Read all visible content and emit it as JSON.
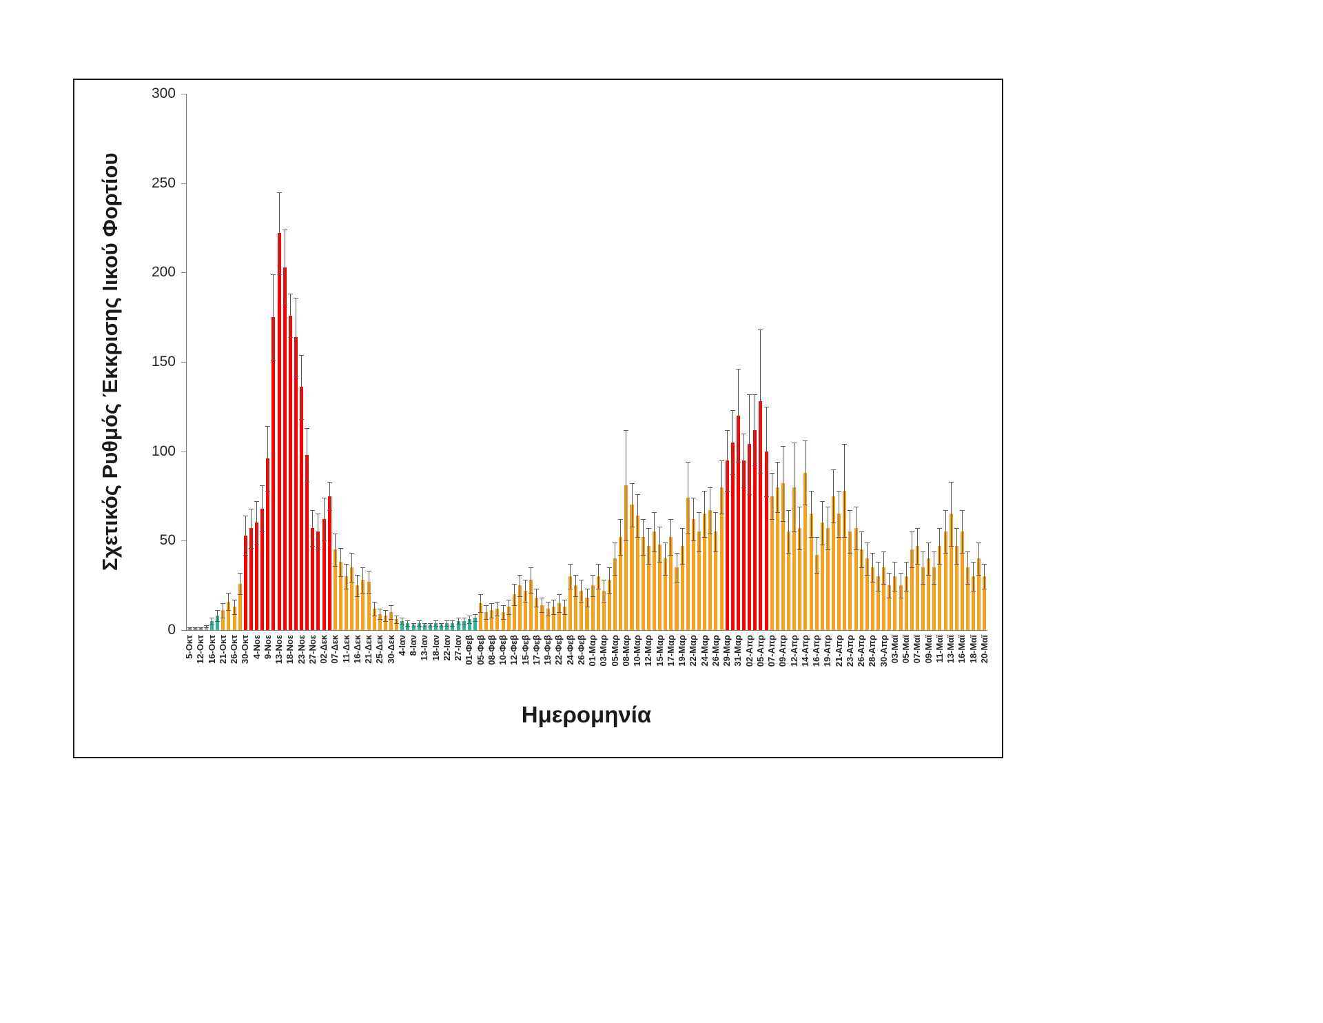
{
  "chart_data": {
    "type": "bar",
    "title": "",
    "xlabel": "Ημερομηνία",
    "ylabel": "Σχετικός Ρυθμός Έκκρισης Ιικού Φορτίου",
    "ylim": [
      0,
      300
    ],
    "y_ticks": [
      0,
      50,
      100,
      150,
      200,
      250,
      300
    ],
    "grid": false,
    "legend": "none",
    "error_bars": true,
    "palette": {
      "gray": "#a6a6a6",
      "teal": "#2fb39b",
      "orange": "#f6a21e",
      "red": "#fe0000",
      "error": "#595959"
    },
    "bars": [
      {
        "label": "5-Οκτ",
        "value": 1,
        "err": 0.4,
        "color": "gray"
      },
      {
        "label": "",
        "value": 1,
        "err": 0.4,
        "color": "gray"
      },
      {
        "label": "12-Οκτ",
        "value": 1,
        "err": 0.4,
        "color": "gray"
      },
      {
        "label": "",
        "value": 2,
        "err": 0.6,
        "color": "gray"
      },
      {
        "label": "16-Οκτ",
        "value": 5,
        "err": 2,
        "color": "teal"
      },
      {
        "label": "",
        "value": 8,
        "err": 3,
        "color": "teal"
      },
      {
        "label": "21-Οκτ",
        "value": 11,
        "err": 4,
        "color": "orange"
      },
      {
        "label": "",
        "value": 16,
        "err": 5,
        "color": "orange"
      },
      {
        "label": "26-Οκτ",
        "value": 13,
        "err": 4,
        "color": "orange"
      },
      {
        "label": "",
        "value": 26,
        "err": 6,
        "color": "orange"
      },
      {
        "label": "30-Οκτ",
        "value": 53,
        "err": 11,
        "color": "red"
      },
      {
        "label": "",
        "value": 57,
        "err": 11,
        "color": "red"
      },
      {
        "label": "4-Νοε",
        "value": 60,
        "err": 12,
        "color": "red"
      },
      {
        "label": "",
        "value": 68,
        "err": 13,
        "color": "red"
      },
      {
        "label": "9-Νοε",
        "value": 96,
        "err": 18,
        "color": "red"
      },
      {
        "label": "",
        "value": 175,
        "err": 24,
        "color": "red"
      },
      {
        "label": "13-Νοε",
        "value": 222,
        "err": 23,
        "color": "red"
      },
      {
        "label": "",
        "value": 203,
        "err": 21,
        "color": "red"
      },
      {
        "label": "18-Νοε",
        "value": 176,
        "err": 12,
        "color": "red"
      },
      {
        "label": "",
        "value": 164,
        "err": 22,
        "color": "red"
      },
      {
        "label": "23-Νοε",
        "value": 136,
        "err": 18,
        "color": "red"
      },
      {
        "label": "",
        "value": 98,
        "err": 15,
        "color": "red"
      },
      {
        "label": "27-Νοε",
        "value": 57,
        "err": 10,
        "color": "red"
      },
      {
        "label": "",
        "value": 55,
        "err": 10,
        "color": "red"
      },
      {
        "label": "02-Δεκ",
        "value": 62,
        "err": 12,
        "color": "red"
      },
      {
        "label": "",
        "value": 75,
        "err": 8,
        "color": "red"
      },
      {
        "label": "07-Δεκ",
        "value": 45,
        "err": 9,
        "color": "orange"
      },
      {
        "label": "",
        "value": 38,
        "err": 8,
        "color": "orange"
      },
      {
        "label": "11-Δεκ",
        "value": 30,
        "err": 7,
        "color": "orange"
      },
      {
        "label": "",
        "value": 35,
        "err": 8,
        "color": "orange"
      },
      {
        "label": "16-Δεκ",
        "value": 25,
        "err": 6,
        "color": "orange"
      },
      {
        "label": "",
        "value": 28,
        "err": 7,
        "color": "orange"
      },
      {
        "label": "21-Δεκ",
        "value": 27,
        "err": 6,
        "color": "orange"
      },
      {
        "label": "",
        "value": 12,
        "err": 4,
        "color": "orange"
      },
      {
        "label": "25-Δεκ",
        "value": 9,
        "err": 3,
        "color": "orange"
      },
      {
        "label": "",
        "value": 8,
        "err": 3,
        "color": "orange"
      },
      {
        "label": "30-Δεκ",
        "value": 10,
        "err": 4,
        "color": "orange"
      },
      {
        "label": "",
        "value": 6,
        "err": 2,
        "color": "orange"
      },
      {
        "label": "4-Ιαν",
        "value": 5,
        "err": 2,
        "color": "teal"
      },
      {
        "label": "",
        "value": 4,
        "err": 1.5,
        "color": "teal"
      },
      {
        "label": "8-Ιαν",
        "value": 3,
        "err": 1,
        "color": "teal"
      },
      {
        "label": "",
        "value": 4,
        "err": 1.5,
        "color": "teal"
      },
      {
        "label": "13-Ιαν",
        "value": 3,
        "err": 1,
        "color": "teal"
      },
      {
        "label": "",
        "value": 3,
        "err": 1,
        "color": "teal"
      },
      {
        "label": "18-Ιαν",
        "value": 4,
        "err": 1.5,
        "color": "teal"
      },
      {
        "label": "",
        "value": 3,
        "err": 1,
        "color": "teal"
      },
      {
        "label": "22-Ιαν",
        "value": 4,
        "err": 1.5,
        "color": "teal"
      },
      {
        "label": "",
        "value": 4,
        "err": 1.5,
        "color": "teal"
      },
      {
        "label": "27-Ιαν",
        "value": 5,
        "err": 2,
        "color": "teal"
      },
      {
        "label": "",
        "value": 5,
        "err": 2,
        "color": "teal"
      },
      {
        "label": "01-Φεβ",
        "value": 6,
        "err": 2,
        "color": "teal"
      },
      {
        "label": "",
        "value": 7,
        "err": 2,
        "color": "teal"
      },
      {
        "label": "05-Φεβ",
        "value": 15,
        "err": 5,
        "color": "orange"
      },
      {
        "label": "",
        "value": 10,
        "err": 4,
        "color": "orange"
      },
      {
        "label": "08-Φεβ",
        "value": 11,
        "err": 4,
        "color": "orange"
      },
      {
        "label": "",
        "value": 12,
        "err": 4,
        "color": "orange"
      },
      {
        "label": "10-Φεβ",
        "value": 10,
        "err": 4,
        "color": "orange"
      },
      {
        "label": "",
        "value": 13,
        "err": 4,
        "color": "orange"
      },
      {
        "label": "12-Φεβ",
        "value": 20,
        "err": 6,
        "color": "orange"
      },
      {
        "label": "",
        "value": 25,
        "err": 6,
        "color": "orange"
      },
      {
        "label": "15-Φεβ",
        "value": 22,
        "err": 6,
        "color": "orange"
      },
      {
        "label": "",
        "value": 28,
        "err": 7,
        "color": "orange"
      },
      {
        "label": "17-Φεβ",
        "value": 18,
        "err": 5,
        "color": "orange"
      },
      {
        "label": "",
        "value": 14,
        "err": 4,
        "color": "orange"
      },
      {
        "label": "19-Φεβ",
        "value": 12,
        "err": 4,
        "color": "orange"
      },
      {
        "label": "",
        "value": 13,
        "err": 4,
        "color": "orange"
      },
      {
        "label": "22-Φεβ",
        "value": 15,
        "err": 5,
        "color": "orange"
      },
      {
        "label": "",
        "value": 13,
        "err": 4,
        "color": "orange"
      },
      {
        "label": "24-Φεβ",
        "value": 30,
        "err": 7,
        "color": "orange"
      },
      {
        "label": "",
        "value": 25,
        "err": 6,
        "color": "orange"
      },
      {
        "label": "26-Φεβ",
        "value": 22,
        "err": 6,
        "color": "orange"
      },
      {
        "label": "",
        "value": 18,
        "err": 5,
        "color": "orange"
      },
      {
        "label": "01-Μαρ",
        "value": 25,
        "err": 6,
        "color": "orange"
      },
      {
        "label": "",
        "value": 30,
        "err": 7,
        "color": "orange"
      },
      {
        "label": "03-Μαρ",
        "value": 22,
        "err": 6,
        "color": "orange"
      },
      {
        "label": "",
        "value": 28,
        "err": 7,
        "color": "orange"
      },
      {
        "label": "05-Μαρ",
        "value": 40,
        "err": 9,
        "color": "orange"
      },
      {
        "label": "",
        "value": 52,
        "err": 10,
        "color": "orange"
      },
      {
        "label": "08-Μαρ",
        "value": 81,
        "err": 31,
        "color": "orange"
      },
      {
        "label": "",
        "value": 70,
        "err": 12,
        "color": "orange"
      },
      {
        "label": "10-Μαρ",
        "value": 64,
        "err": 12,
        "color": "orange"
      },
      {
        "label": "",
        "value": 52,
        "err": 10,
        "color": "orange"
      },
      {
        "label": "12-Μαρ",
        "value": 47,
        "err": 10,
        "color": "orange"
      },
      {
        "label": "",
        "value": 55,
        "err": 11,
        "color": "orange"
      },
      {
        "label": "15-Μαρ",
        "value": 48,
        "err": 10,
        "color": "orange"
      },
      {
        "label": "",
        "value": 40,
        "err": 9,
        "color": "orange"
      },
      {
        "label": "17-Μαρ",
        "value": 52,
        "err": 10,
        "color": "orange"
      },
      {
        "label": "",
        "value": 35,
        "err": 8,
        "color": "orange"
      },
      {
        "label": "19-Μαρ",
        "value": 47,
        "err": 10,
        "color": "orange"
      },
      {
        "label": "",
        "value": 74,
        "err": 20,
        "color": "orange"
      },
      {
        "label": "22-Μαρ",
        "value": 62,
        "err": 12,
        "color": "orange"
      },
      {
        "label": "",
        "value": 55,
        "err": 11,
        "color": "orange"
      },
      {
        "label": "24-Μαρ",
        "value": 65,
        "err": 13,
        "color": "orange"
      },
      {
        "label": "",
        "value": 67,
        "err": 13,
        "color": "orange"
      },
      {
        "label": "26-Μαρ",
        "value": 55,
        "err": 11,
        "color": "orange"
      },
      {
        "label": "",
        "value": 80,
        "err": 15,
        "color": "orange"
      },
      {
        "label": "29-Μαρ",
        "value": 95,
        "err": 17,
        "color": "red"
      },
      {
        "label": "",
        "value": 105,
        "err": 18,
        "color": "red"
      },
      {
        "label": "31-Μαρ",
        "value": 120,
        "err": 26,
        "color": "red"
      },
      {
        "label": "",
        "value": 95,
        "err": 15,
        "color": "red"
      },
      {
        "label": "02-Απρ",
        "value": 104,
        "err": 28,
        "color": "red"
      },
      {
        "label": "",
        "value": 112,
        "err": 20,
        "color": "red"
      },
      {
        "label": "05-Απρ",
        "value": 128,
        "err": 40,
        "color": "red"
      },
      {
        "label": "",
        "value": 100,
        "err": 25,
        "color": "red"
      },
      {
        "label": "07-Απρ",
        "value": 75,
        "err": 13,
        "color": "orange"
      },
      {
        "label": "",
        "value": 80,
        "err": 14,
        "color": "orange"
      },
      {
        "label": "09-Απρ",
        "value": 82,
        "err": 21,
        "color": "orange"
      },
      {
        "label": "",
        "value": 55,
        "err": 12,
        "color": "orange"
      },
      {
        "label": "12-Απρ",
        "value": 80,
        "err": 25,
        "color": "orange"
      },
      {
        "label": "",
        "value": 57,
        "err": 12,
        "color": "orange"
      },
      {
        "label": "14-Απρ",
        "value": 88,
        "err": 18,
        "color": "orange"
      },
      {
        "label": "",
        "value": 65,
        "err": 13,
        "color": "orange"
      },
      {
        "label": "16-Απρ",
        "value": 42,
        "err": 10,
        "color": "orange"
      },
      {
        "label": "",
        "value": 60,
        "err": 12,
        "color": "orange"
      },
      {
        "label": "19-Απρ",
        "value": 57,
        "err": 12,
        "color": "orange"
      },
      {
        "label": "",
        "value": 75,
        "err": 15,
        "color": "orange"
      },
      {
        "label": "21-Απρ",
        "value": 65,
        "err": 13,
        "color": "orange"
      },
      {
        "label": "",
        "value": 78,
        "err": 26,
        "color": "orange"
      },
      {
        "label": "23-Απρ",
        "value": 55,
        "err": 12,
        "color": "orange"
      },
      {
        "label": "",
        "value": 57,
        "err": 12,
        "color": "orange"
      },
      {
        "label": "26-Απρ",
        "value": 45,
        "err": 10,
        "color": "orange"
      },
      {
        "label": "",
        "value": 40,
        "err": 9,
        "color": "orange"
      },
      {
        "label": "28-Απρ",
        "value": 35,
        "err": 8,
        "color": "orange"
      },
      {
        "label": "",
        "value": 30,
        "err": 8,
        "color": "orange"
      },
      {
        "label": "30-Απρ",
        "value": 35,
        "err": 9,
        "color": "orange"
      },
      {
        "label": "",
        "value": 25,
        "err": 7,
        "color": "orange"
      },
      {
        "label": "03-Μαϊ",
        "value": 30,
        "err": 8,
        "color": "orange"
      },
      {
        "label": "",
        "value": 25,
        "err": 7,
        "color": "orange"
      },
      {
        "label": "05-Μαϊ",
        "value": 30,
        "err": 8,
        "color": "orange"
      },
      {
        "label": "",
        "value": 45,
        "err": 10,
        "color": "orange"
      },
      {
        "label": "07-Μαϊ",
        "value": 47,
        "err": 10,
        "color": "orange"
      },
      {
        "label": "",
        "value": 35,
        "err": 9,
        "color": "orange"
      },
      {
        "label": "09-Μαϊ",
        "value": 40,
        "err": 9,
        "color": "orange"
      },
      {
        "label": "",
        "value": 35,
        "err": 9,
        "color": "orange"
      },
      {
        "label": "11-Μαϊ",
        "value": 47,
        "err": 10,
        "color": "orange"
      },
      {
        "label": "",
        "value": 55,
        "err": 12,
        "color": "orange"
      },
      {
        "label": "13-Μαϊ",
        "value": 65,
        "err": 18,
        "color": "orange"
      },
      {
        "label": "",
        "value": 47,
        "err": 10,
        "color": "orange"
      },
      {
        "label": "16-Μαϊ",
        "value": 55,
        "err": 12,
        "color": "orange"
      },
      {
        "label": "",
        "value": 35,
        "err": 9,
        "color": "orange"
      },
      {
        "label": "18-Μαϊ",
        "value": 30,
        "err": 8,
        "color": "orange"
      },
      {
        "label": "",
        "value": 40,
        "err": 9,
        "color": "orange"
      },
      {
        "label": "20-Μαϊ",
        "value": 30,
        "err": 7,
        "color": "orange"
      }
    ]
  }
}
